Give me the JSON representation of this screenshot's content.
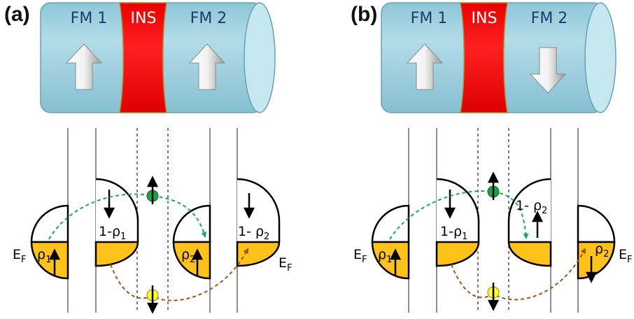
{
  "panels": [
    {
      "label": "(a)",
      "layers": {
        "left": "FM 1",
        "middle": "INS",
        "right": "FM 2"
      },
      "magnetization": {
        "left": "up",
        "right": "up"
      },
      "fermi_label": "E",
      "fermi_sub": "F",
      "rho1": "ρ",
      "rho1_sub": "1",
      "one_minus_rho1": "1-ρ",
      "one_minus_rho1_sub": "1",
      "rho2": "ρ",
      "rho2_sub": "2",
      "one_minus_rho2": "1- ρ",
      "one_minus_rho2_sub": "2"
    },
    {
      "label": "(b)",
      "layers": {
        "left": "FM 1",
        "middle": "INS",
        "right": "FM 2"
      },
      "magnetization": {
        "left": "up",
        "right": "down"
      },
      "fermi_label": "E",
      "fermi_sub": "F",
      "rho1": "ρ",
      "rho1_sub": "1",
      "one_minus_rho1": "1-ρ",
      "one_minus_rho1_sub": "1",
      "rho2": "ρ",
      "rho2_sub": "2",
      "one_minus_rho2": "1- ρ",
      "one_minus_rho2_sub": "2"
    }
  ],
  "colors": {
    "ferromagnet": "#a8d8e6",
    "insulator": "#ff1a1a",
    "occupied": "#ffc21a",
    "spin_up_electron": "#1e9e46",
    "spin_down_electron": "#ffff33",
    "spin_up_path": "#1aa85a",
    "spin_down_path": "#a0521a"
  }
}
